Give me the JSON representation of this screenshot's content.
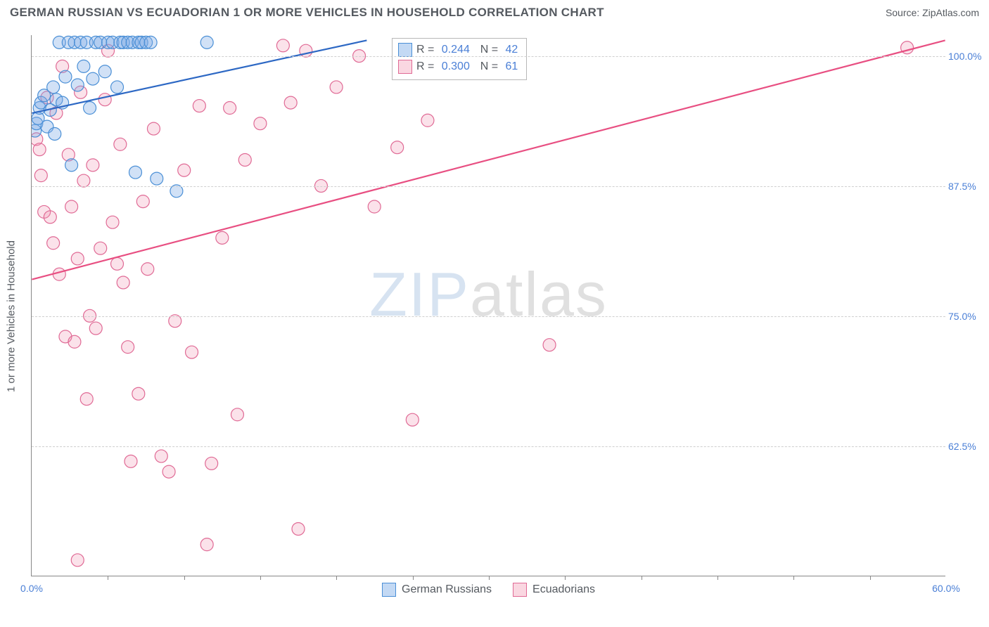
{
  "title": "GERMAN RUSSIAN VS ECUADORIAN 1 OR MORE VEHICLES IN HOUSEHOLD CORRELATION CHART",
  "source": "Source: ZipAtlas.com",
  "y_label": "1 or more Vehicles in Household",
  "watermark_a": "ZIP",
  "watermark_b": "atlas",
  "chart": {
    "type": "scatter",
    "x_domain": [
      0,
      60
    ],
    "y_domain": [
      50,
      102
    ],
    "x_ticks": [
      0,
      60
    ],
    "x_tick_labels": [
      "0.0%",
      "60.0%"
    ],
    "x_minor_ticks": [
      5,
      10,
      15,
      20,
      25,
      30,
      35,
      40,
      45,
      50,
      55
    ],
    "y_ticks": [
      62.5,
      75.0,
      87.5,
      100.0
    ],
    "y_tick_labels": [
      "62.5%",
      "75.0%",
      "87.5%",
      "100.0%"
    ],
    "grid_color": "#cfcfcf",
    "background_color": "#ffffff",
    "marker_radius": 9,
    "series": [
      {
        "name": "German Russians",
        "color_fill": "rgba(122,170,230,0.35)",
        "color_stroke": "#4a8fd6",
        "line_color": "#2d68c4",
        "R": "0.244",
        "N": "42",
        "trend": {
          "x1": 0,
          "y1": 94.5,
          "x2": 22,
          "y2": 101.5
        },
        "points": [
          [
            0.2,
            92.8
          ],
          [
            0.3,
            93.5
          ],
          [
            0.4,
            94.0
          ],
          [
            0.5,
            95.0
          ],
          [
            0.6,
            95.5
          ],
          [
            0.8,
            96.2
          ],
          [
            1.0,
            93.2
          ],
          [
            1.2,
            94.8
          ],
          [
            1.4,
            97.0
          ],
          [
            1.5,
            92.5
          ],
          [
            1.6,
            95.8
          ],
          [
            1.8,
            101.3
          ],
          [
            2.0,
            95.5
          ],
          [
            2.2,
            98.0
          ],
          [
            2.4,
            101.3
          ],
          [
            2.6,
            89.5
          ],
          [
            2.8,
            101.3
          ],
          [
            3.0,
            97.2
          ],
          [
            3.2,
            101.3
          ],
          [
            3.4,
            99.0
          ],
          [
            3.6,
            101.3
          ],
          [
            3.8,
            95.0
          ],
          [
            4.0,
            97.8
          ],
          [
            4.2,
            101.3
          ],
          [
            4.5,
            101.3
          ],
          [
            4.8,
            98.5
          ],
          [
            5.0,
            101.3
          ],
          [
            5.3,
            101.3
          ],
          [
            5.6,
            97.0
          ],
          [
            5.8,
            101.3
          ],
          [
            6.0,
            101.3
          ],
          [
            6.3,
            101.3
          ],
          [
            6.6,
            101.3
          ],
          [
            6.8,
            88.8
          ],
          [
            7.0,
            101.3
          ],
          [
            7.2,
            101.3
          ],
          [
            7.5,
            101.3
          ],
          [
            7.8,
            101.3
          ],
          [
            8.2,
            88.2
          ],
          [
            9.5,
            87.0
          ],
          [
            11.5,
            101.3
          ],
          [
            26.5,
            100.8
          ]
        ]
      },
      {
        "name": "Ecuadorians",
        "color_fill": "rgba(240,140,170,0.25)",
        "color_stroke": "#e06a95",
        "line_color": "#e84f82",
        "R": "0.300",
        "N": "61",
        "trend": {
          "x1": 0,
          "y1": 78.5,
          "x2": 60,
          "y2": 101.5
        },
        "points": [
          [
            0.3,
            92.0
          ],
          [
            0.5,
            91.0
          ],
          [
            0.6,
            88.5
          ],
          [
            0.8,
            85.0
          ],
          [
            1.0,
            96.0
          ],
          [
            1.2,
            84.5
          ],
          [
            1.4,
            82.0
          ],
          [
            1.6,
            94.5
          ],
          [
            1.8,
            79.0
          ],
          [
            2.0,
            99.0
          ],
          [
            2.2,
            73.0
          ],
          [
            2.4,
            90.5
          ],
          [
            2.6,
            85.5
          ],
          [
            2.8,
            72.5
          ],
          [
            3.0,
            80.5
          ],
          [
            3.2,
            96.5
          ],
          [
            3.4,
            88.0
          ],
          [
            3.6,
            67.0
          ],
          [
            3.8,
            75.0
          ],
          [
            4.0,
            89.5
          ],
          [
            4.2,
            73.8
          ],
          [
            4.5,
            81.5
          ],
          [
            4.8,
            95.8
          ],
          [
            5.0,
            100.5
          ],
          [
            5.3,
            84.0
          ],
          [
            5.6,
            80.0
          ],
          [
            5.8,
            91.5
          ],
          [
            6.0,
            78.2
          ],
          [
            6.3,
            72.0
          ],
          [
            6.5,
            61.0
          ],
          [
            7.0,
            67.5
          ],
          [
            7.3,
            86.0
          ],
          [
            7.6,
            79.5
          ],
          [
            8.0,
            93.0
          ],
          [
            8.5,
            61.5
          ],
          [
            9.0,
            60.0
          ],
          [
            9.4,
            74.5
          ],
          [
            10.0,
            89.0
          ],
          [
            10.5,
            71.5
          ],
          [
            11.0,
            95.2
          ],
          [
            11.5,
            53.0
          ],
          [
            11.8,
            60.8
          ],
          [
            12.5,
            82.5
          ],
          [
            13.0,
            95.0
          ],
          [
            13.5,
            65.5
          ],
          [
            14.0,
            90.0
          ],
          [
            15.0,
            93.5
          ],
          [
            16.5,
            101.0
          ],
          [
            17.0,
            95.5
          ],
          [
            17.5,
            54.5
          ],
          [
            18.0,
            100.5
          ],
          [
            19.0,
            87.5
          ],
          [
            20.0,
            97.0
          ],
          [
            21.5,
            100.0
          ],
          [
            22.5,
            85.5
          ],
          [
            24.0,
            91.2
          ],
          [
            25.0,
            65.0
          ],
          [
            26.0,
            93.8
          ],
          [
            34.0,
            72.2
          ],
          [
            57.5,
            100.8
          ],
          [
            3.0,
            51.5
          ]
        ]
      }
    ],
    "legend_bottom": [
      {
        "label": "German Russians",
        "swatch": "blue"
      },
      {
        "label": "Ecuadorians",
        "swatch": "pink"
      }
    ]
  }
}
